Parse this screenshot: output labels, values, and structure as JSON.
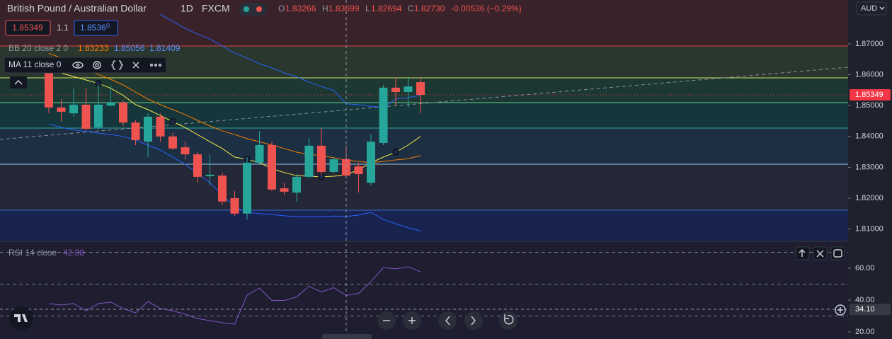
{
  "ui": {
    "currency": "AUD",
    "sell_price": "1.85349",
    "spread": "1.1",
    "buy_price": "1.8536",
    "buy_pip": "0",
    "ohlc": [
      {
        "key": "O",
        "value": "1.83266"
      },
      {
        "key": "H",
        "value": "1.83699"
      },
      {
        "key": "L",
        "value": "1.82694"
      },
      {
        "key": "C",
        "value": "1.82730"
      }
    ],
    "change": "-0.00536 (−0.29%)"
  },
  "chart_data": {
    "type": "candlestick",
    "title": "British Pound / Australian Dollar",
    "interval": "1D",
    "source": "FXCM",
    "up_color": "#26a69a",
    "down_color": "#ef5350",
    "open": [
      1.8613,
      1.8494,
      1.8475,
      1.8503,
      1.8429,
      1.85,
      1.851,
      1.8445,
      1.8383,
      1.8464,
      1.84,
      1.8365,
      1.8342,
      1.8271,
      1.8273,
      1.82,
      1.815,
      1.8315,
      1.8372,
      1.8232,
      1.8218,
      1.8269,
      1.837,
      1.8285,
      1.83266,
      1.8303,
      1.825,
      1.8379,
      1.8558,
      1.8544,
      1.8576
    ],
    "high": [
      1.8624,
      1.8521,
      1.8556,
      1.8556,
      1.8567,
      1.8567,
      1.8517,
      1.8452,
      1.8475,
      1.8475,
      1.8411,
      1.8383,
      1.8349,
      1.8342,
      1.8283,
      1.8223,
      1.8333,
      1.8418,
      1.8383,
      1.825,
      1.8278,
      1.8395,
      1.8429,
      1.8333,
      1.83699,
      1.8315,
      1.8406,
      1.8567,
      1.859,
      1.8594,
      1.8594
    ],
    "low": [
      1.8475,
      1.8448,
      1.8464,
      1.8418,
      1.8422,
      1.8498,
      1.8434,
      1.8372,
      1.8333,
      1.8383,
      1.8356,
      1.8326,
      1.825,
      1.8241,
      1.8177,
      1.8143,
      1.8131,
      1.831,
      1.8223,
      1.8211,
      1.8189,
      1.8264,
      1.8273,
      1.8281,
      1.82694,
      1.8218,
      1.8241,
      1.8372,
      1.8498,
      1.8494,
      1.8475
    ],
    "close": [
      1.8494,
      1.848,
      1.8503,
      1.8425,
      1.8503,
      1.851,
      1.8445,
      1.8388,
      1.8464,
      1.84,
      1.8361,
      1.8342,
      1.8269,
      1.8276,
      1.8189,
      1.815,
      1.8315,
      1.8372,
      1.8228,
      1.8221,
      1.8269,
      1.837,
      1.8285,
      1.8326,
      1.8273,
      1.8278,
      1.8383,
      1.8558,
      1.8544,
      1.8562,
      1.85349
    ],
    "last_price": 1.85349,
    "last_color": "#f23645",
    "ylim": [
      1.80624,
      1.88422
    ],
    "yticks": [
      {
        "value": 1.87,
        "label": "1.87000"
      },
      {
        "value": 1.86,
        "label": "1.86000"
      },
      {
        "value": 1.85,
        "label": "1.85000"
      },
      {
        "value": 1.84,
        "label": "1.84000"
      },
      {
        "value": 1.83,
        "label": "1.83000"
      },
      {
        "value": 1.82,
        "label": "1.82000"
      },
      {
        "value": 1.81,
        "label": "1.81000"
      }
    ],
    "bb": {
      "label": "BB 20 close 2 0",
      "basis": {
        "color": "#f57c00",
        "value": 1.83233,
        "values": [
          1.867,
          1.8654,
          1.8636,
          1.8617,
          1.8601,
          1.8585,
          1.8567,
          1.8544,
          1.8521,
          1.8503,
          1.8487,
          1.8471,
          1.8452,
          1.8434,
          1.8418,
          1.8406,
          1.8393,
          1.8383,
          1.8372,
          1.8361,
          1.8349,
          1.8342,
          1.8338,
          1.8331,
          1.83233,
          1.8319,
          1.8315,
          1.8319,
          1.8324,
          1.8328,
          1.8338
        ]
      },
      "upper": {
        "color": "#2962ff",
        "value": 1.85056,
        "values": [
          null,
          null,
          null,
          null,
          null,
          null,
          null,
          null,
          null,
          1.8796,
          1.8773,
          1.875,
          1.8732,
          1.8716,
          1.8693,
          1.867,
          1.8654,
          1.8636,
          1.8622,
          1.8606,
          1.8594,
          1.8576,
          1.8562,
          1.8549,
          1.85056,
          1.8503,
          1.8498,
          1.8494,
          1.8521,
          1.8526,
          1.8533
        ]
      },
      "lower": {
        "color": "#2962ff",
        "value": 1.81409,
        "values": [
          1.8441,
          1.8429,
          1.8422,
          1.8416,
          1.8411,
          1.8406,
          1.84,
          1.8388,
          1.8372,
          1.8356,
          1.8333,
          1.831,
          1.828,
          1.825,
          1.8211,
          1.8172,
          1.8154,
          1.815,
          1.8147,
          1.8143,
          1.814,
          1.814,
          1.814,
          1.8142,
          1.81409,
          1.8145,
          1.8154,
          1.8131,
          1.8117,
          1.8104,
          1.8094
        ]
      }
    },
    "ma": {
      "label": "MA 11 close 0",
      "color": "#f5e94a",
      "values": [
        1.8613,
        1.8606,
        1.8594,
        1.8583,
        1.8572,
        1.8556,
        1.8533,
        1.8503,
        1.8487,
        1.8468,
        1.8448,
        1.8429,
        1.8406,
        1.8383,
        1.8361,
        1.8333,
        1.8326,
        1.8315,
        1.8296,
        1.8283,
        1.8273,
        1.8271,
        1.8269,
        1.8271,
        1.8276,
        1.8292,
        1.8315,
        1.8333,
        1.8349,
        1.8372,
        1.84
      ]
    },
    "rsi": {
      "label": "RSI 14 close",
      "legend_value": 42.88,
      "color": "#7e57c2",
      "values": [
        37.8,
        36.9,
        37.8,
        33.3,
        37.8,
        38.7,
        34.7,
        32.0,
        39.1,
        34.7,
        33.3,
        31.1,
        28.4,
        27.1,
        25.8,
        24.9,
        43.1,
        47.5,
        39.8,
        39.8,
        42.0,
        48.7,
        45.1,
        47.8,
        42.88,
        44.2,
        51.6,
        60.4,
        59.6,
        60.9,
        57.8
      ],
      "levels": [
        70,
        50,
        30
      ],
      "ylim": [
        15.56,
        76.44
      ],
      "yticks": [
        {
          "value": 60,
          "label": "60.00"
        },
        {
          "value": 40,
          "label": "40.00"
        },
        {
          "value": 20,
          "label": "20.00"
        }
      ],
      "crosshair": {
        "value": 34.1,
        "label": "34.10"
      }
    }
  }
}
